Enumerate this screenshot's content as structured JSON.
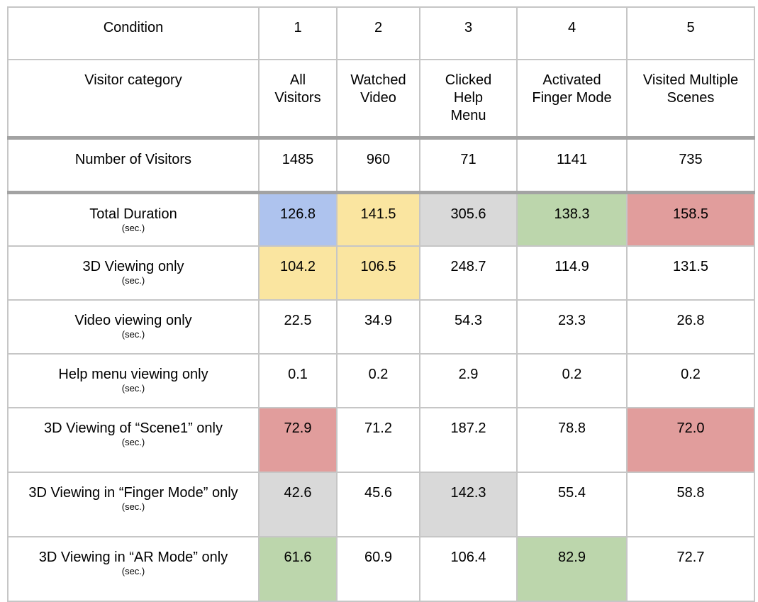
{
  "header": {
    "label": "Condition",
    "conditions": [
      "1",
      "2",
      "3",
      "4",
      "5"
    ]
  },
  "visitor_category": {
    "label": "Visitor category",
    "values": [
      "All Visitors",
      "Watched Video",
      "Clicked Help Menu",
      "Activated Finger Mode",
      "Visited Multiple Scenes"
    ]
  },
  "visitors": {
    "label": "Number of Visitors",
    "values": [
      "1485",
      "960",
      "71",
      "1141",
      "735"
    ]
  },
  "unit": "(sec.)",
  "metrics": [
    {
      "label": "Total Duration",
      "values": [
        "126.8",
        "141.5",
        "305.6",
        "138.3",
        "158.5"
      ],
      "highlights": [
        "blue",
        "yellow",
        "gray",
        "green",
        "red"
      ]
    },
    {
      "label": "3D Viewing only",
      "values": [
        "104.2",
        "106.5",
        "248.7",
        "114.9",
        "131.5"
      ],
      "highlights": [
        "yellow",
        "yellow",
        "",
        "",
        ""
      ]
    },
    {
      "label": "Video viewing only",
      "values": [
        "22.5",
        "34.9",
        "54.3",
        "23.3",
        "26.8"
      ],
      "highlights": [
        "",
        "",
        "",
        "",
        ""
      ]
    },
    {
      "label": "Help menu viewing only",
      "values": [
        "0.1",
        "0.2",
        "2.9",
        "0.2",
        "0.2"
      ],
      "highlights": [
        "",
        "",
        "",
        "",
        ""
      ]
    },
    {
      "label": "3D Viewing of “Scene1” only",
      "values": [
        "72.9",
        "71.2",
        "187.2",
        "78.8",
        "72.0"
      ],
      "highlights": [
        "red",
        "",
        "",
        "",
        "red"
      ]
    },
    {
      "label": "3D Viewing in “Finger Mode” only",
      "values": [
        "42.6",
        "45.6",
        "142.3",
        "55.4",
        "58.8"
      ],
      "highlights": [
        "gray",
        "",
        "gray",
        "",
        ""
      ]
    },
    {
      "label": "3D Viewing in “AR Mode” only",
      "values": [
        "61.6",
        "60.9",
        "106.4",
        "82.9",
        "72.7"
      ],
      "highlights": [
        "green",
        "",
        "",
        "green",
        ""
      ]
    }
  ],
  "colors": {
    "blue": "#aec3ee",
    "yellow": "#fae5a0",
    "gray": "#d9d9d9",
    "green": "#bcd6ac",
    "red": "#e19d9c",
    "grid": "#c6c6c6",
    "thick_rule": "#a3a3a3"
  }
}
